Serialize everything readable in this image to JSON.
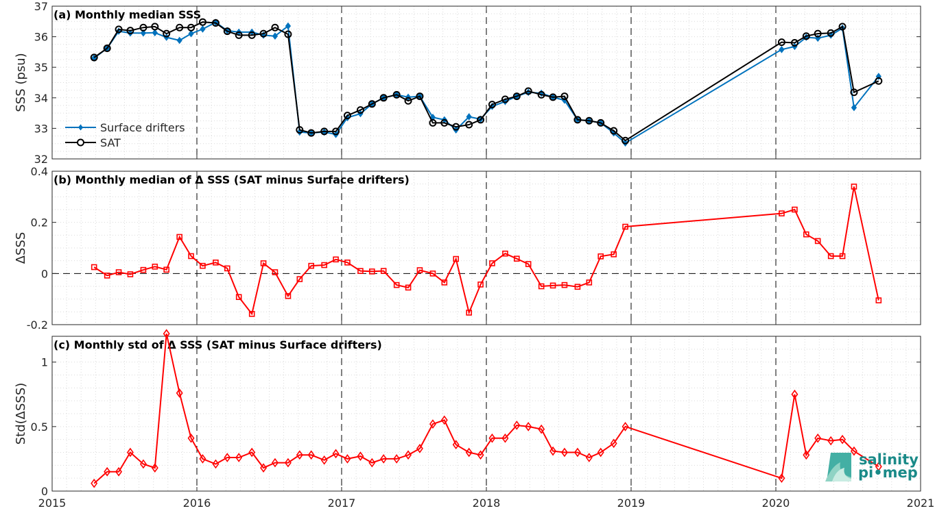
{
  "chart_data": [
    {
      "type": "line",
      "title": "(a) Monthly median SSS",
      "xlabel": "",
      "ylabel": "SSS (psu)",
      "xlim": [
        2015,
        2021
      ],
      "ylim": [
        32,
        37
      ],
      "xticks": [
        "2015",
        "2016",
        "2017",
        "2018",
        "2019",
        "2020",
        "2021"
      ],
      "yticks": [
        "32",
        "33",
        "34",
        "35",
        "36",
        "37"
      ],
      "grid": "minor dotted",
      "legend": "bottom-left",
      "x": [
        2015.29,
        2015.38,
        2015.46,
        2015.54,
        2015.63,
        2015.71,
        2015.79,
        2015.88,
        2015.96,
        2016.04,
        2016.13,
        2016.21,
        2016.29,
        2016.38,
        2016.46,
        2016.54,
        2016.63,
        2016.71,
        2016.79,
        2016.88,
        2016.96,
        2017.04,
        2017.13,
        2017.21,
        2017.29,
        2017.38,
        2017.46,
        2017.54,
        2017.63,
        2017.71,
        2017.79,
        2017.88,
        2017.96,
        2018.04,
        2018.13,
        2018.21,
        2018.29,
        2018.38,
        2018.46,
        2018.54,
        2018.63,
        2018.71,
        2018.79,
        2018.88,
        2018.96,
        2020.04,
        2020.13,
        2020.21,
        2020.29,
        2020.38,
        2020.46,
        2020.54,
        2020.71
      ],
      "series": [
        {
          "name": "Surface drifters",
          "color": "#0072bd",
          "marker": "diamond-filled",
          "values": [
            35.3,
            35.62,
            36.18,
            36.12,
            36.12,
            36.13,
            35.98,
            35.88,
            36.1,
            36.25,
            36.47,
            36.2,
            36.15,
            36.15,
            36.05,
            36.02,
            36.35,
            32.88,
            32.85,
            32.88,
            32.8,
            33.35,
            33.48,
            33.8,
            34.0,
            34.1,
            34.02,
            34.05,
            33.36,
            33.28,
            32.95,
            33.38,
            33.3,
            33.72,
            33.88,
            34.05,
            34.18,
            34.15,
            34.02,
            33.92,
            33.28,
            33.25,
            33.18,
            32.85,
            32.52,
            35.58,
            35.68,
            35.98,
            35.95,
            36.05,
            36.28,
            33.68,
            34.7
          ]
        },
        {
          "name": "SAT",
          "color": "#000000",
          "marker": "circle-open",
          "values": [
            35.32,
            35.62,
            36.24,
            36.2,
            36.3,
            36.33,
            36.1,
            36.3,
            36.3,
            36.48,
            36.45,
            36.18,
            36.05,
            36.05,
            36.1,
            36.3,
            36.08,
            32.95,
            32.85,
            32.9,
            32.9,
            33.42,
            33.6,
            33.8,
            34.0,
            34.1,
            33.9,
            34.05,
            33.18,
            33.18,
            33.05,
            33.12,
            33.28,
            33.78,
            33.95,
            34.05,
            34.22,
            34.1,
            34.02,
            34.05,
            33.28,
            33.25,
            33.18,
            32.92,
            32.6,
            35.82,
            35.8,
            36.02,
            36.1,
            36.12,
            36.33,
            34.18,
            34.55
          ]
        }
      ]
    },
    {
      "type": "line",
      "title": "(b) Monthly median of Δ SSS (SAT minus Surface drifters)",
      "xlabel": "",
      "ylabel": "ΔSSS",
      "xlim": [
        2015,
        2021
      ],
      "ylim": [
        -0.2,
        0.4
      ],
      "xticks": [
        "2015",
        "2016",
        "2017",
        "2018",
        "2019",
        "2020",
        "2021"
      ],
      "yticks": [
        "-0.2",
        "0",
        "0.2",
        "0.4"
      ],
      "zero_line": "dashed",
      "grid": "minor dotted",
      "x": [
        2015.29,
        2015.38,
        2015.46,
        2015.54,
        2015.63,
        2015.71,
        2015.79,
        2015.88,
        2015.96,
        2016.04,
        2016.13,
        2016.21,
        2016.29,
        2016.38,
        2016.46,
        2016.54,
        2016.63,
        2016.71,
        2016.79,
        2016.88,
        2016.96,
        2017.04,
        2017.13,
        2017.21,
        2017.29,
        2017.38,
        2017.46,
        2017.54,
        2017.63,
        2017.71,
        2017.79,
        2017.88,
        2017.96,
        2018.04,
        2018.13,
        2018.21,
        2018.29,
        2018.38,
        2018.46,
        2018.54,
        2018.63,
        2018.71,
        2018.79,
        2018.88,
        2018.96,
        2020.04,
        2020.13,
        2020.21,
        2020.29,
        2020.38,
        2020.46,
        2020.54,
        2020.71
      ],
      "series": [
        {
          "name": "",
          "color": "#ff0000",
          "marker": "square-open",
          "values": [
            0.025,
            -0.008,
            0.005,
            -0.003,
            0.014,
            0.027,
            0.015,
            0.143,
            0.068,
            0.03,
            0.043,
            0.02,
            -0.092,
            -0.158,
            0.04,
            0.005,
            -0.088,
            -0.022,
            0.03,
            0.033,
            0.055,
            0.043,
            0.01,
            0.008,
            0.01,
            -0.045,
            -0.055,
            0.013,
            0.0,
            -0.035,
            0.057,
            -0.153,
            -0.043,
            0.04,
            0.078,
            0.058,
            0.037,
            -0.05,
            -0.047,
            -0.045,
            -0.052,
            -0.035,
            0.067,
            0.075,
            0.183,
            0.235,
            0.25,
            0.153,
            0.127,
            0.068,
            0.068,
            0.34,
            -0.105
          ]
        }
      ]
    },
    {
      "type": "line",
      "title": "(c) Monthly std of Δ SSS (SAT minus Surface drifters)",
      "xlabel": "",
      "ylabel": "Std(ΔSSS)",
      "xlim": [
        2015,
        2021
      ],
      "ylim": [
        0,
        1.2
      ],
      "xticks": [
        "2015",
        "2016",
        "2017",
        "2018",
        "2019",
        "2020",
        "2021"
      ],
      "yticks": [
        "0",
        "0.5",
        "1"
      ],
      "grid": "minor dotted",
      "x": [
        2015.29,
        2015.38,
        2015.46,
        2015.54,
        2015.63,
        2015.71,
        2015.79,
        2015.88,
        2015.96,
        2016.04,
        2016.13,
        2016.21,
        2016.29,
        2016.38,
        2016.46,
        2016.54,
        2016.63,
        2016.71,
        2016.79,
        2016.88,
        2016.96,
        2017.04,
        2017.13,
        2017.21,
        2017.29,
        2017.38,
        2017.46,
        2017.54,
        2017.63,
        2017.71,
        2017.79,
        2017.88,
        2017.96,
        2018.04,
        2018.13,
        2018.21,
        2018.29,
        2018.38,
        2018.46,
        2018.54,
        2018.63,
        2018.71,
        2018.79,
        2018.88,
        2018.96,
        2020.04,
        2020.13,
        2020.21,
        2020.29,
        2020.38,
        2020.46,
        2020.54,
        2020.71
      ],
      "series": [
        {
          "name": "",
          "color": "#ff0000",
          "marker": "diamond-open",
          "values": [
            0.06,
            0.15,
            0.15,
            0.3,
            0.21,
            0.18,
            1.22,
            0.76,
            0.41,
            0.25,
            0.21,
            0.26,
            0.26,
            0.3,
            0.18,
            0.22,
            0.22,
            0.28,
            0.28,
            0.24,
            0.29,
            0.25,
            0.27,
            0.22,
            0.25,
            0.25,
            0.28,
            0.33,
            0.52,
            0.55,
            0.36,
            0.3,
            0.28,
            0.41,
            0.41,
            0.51,
            0.5,
            0.48,
            0.31,
            0.3,
            0.3,
            0.26,
            0.3,
            0.37,
            0.5,
            0.1,
            0.75,
            0.28,
            0.41,
            0.39,
            0.4,
            0.31,
            0.19
          ]
        }
      ]
    }
  ],
  "logo": {
    "line1": "salinity",
    "line2": "pi•mep"
  }
}
